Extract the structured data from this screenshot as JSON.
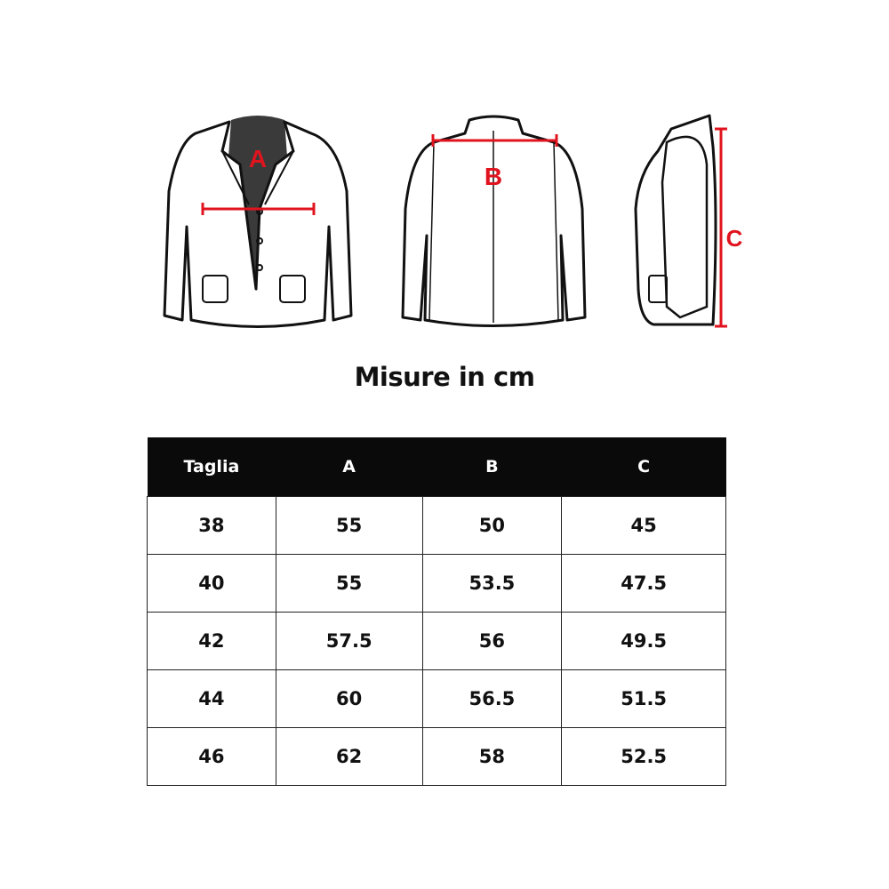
{
  "figures": {
    "front_label": "A",
    "back_label": "B",
    "side_label": "C",
    "measure_color": "#e0141e"
  },
  "title": "Misure in cm",
  "table": {
    "headers": [
      "Taglia",
      "A",
      "B",
      "C"
    ],
    "rows": [
      [
        "38",
        "55",
        "50",
        "45"
      ],
      [
        "40",
        "55",
        "53.5",
        "47.5"
      ],
      [
        "42",
        "57.5",
        "56",
        "49.5"
      ],
      [
        "44",
        "60",
        "56.5",
        "51.5"
      ],
      [
        "46",
        "62",
        "58",
        "52.5"
      ]
    ]
  }
}
